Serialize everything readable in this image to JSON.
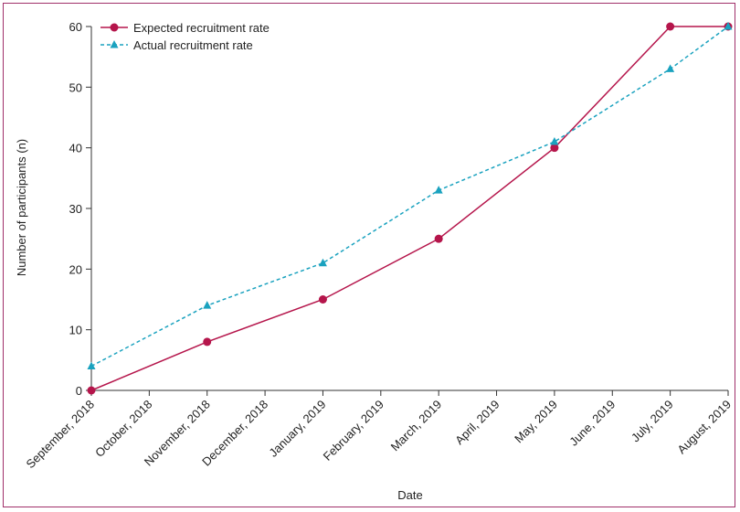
{
  "chart_data": {
    "type": "line",
    "title": "",
    "xlabel": "Date",
    "ylabel": "Number of participants (n)",
    "categories": [
      "September, 2018",
      "October, 2018",
      "November, 2018",
      "December, 2018",
      "January, 2019",
      "February, 2019",
      "March, 2019",
      "April, 2019",
      "May, 2019",
      "June, 2019",
      "July, 2019",
      "August, 2019"
    ],
    "ylim": [
      0,
      60
    ],
    "yticks": [
      0,
      10,
      20,
      30,
      40,
      50,
      60
    ],
    "grid": false,
    "legend_position": "top-left",
    "series": [
      {
        "name": "Expected recruitment rate",
        "color": "#b5154b",
        "marker": "circle",
        "line_style": "solid",
        "points": [
          {
            "x": "September, 2018",
            "y": 0
          },
          {
            "x": "November, 2018",
            "y": 8
          },
          {
            "x": "January, 2019",
            "y": 15
          },
          {
            "x": "March, 2019",
            "y": 25
          },
          {
            "x": "May, 2019",
            "y": 40
          },
          {
            "x": "July, 2019",
            "y": 60
          },
          {
            "x": "August, 2019",
            "y": 60
          }
        ]
      },
      {
        "name": "Actual recruitment rate",
        "color": "#1aa2bf",
        "marker": "triangle",
        "line_style": "dashed",
        "points": [
          {
            "x": "September, 2018",
            "y": 4
          },
          {
            "x": "November, 2018",
            "y": 14
          },
          {
            "x": "January, 2019",
            "y": 21
          },
          {
            "x": "March, 2019",
            "y": 33
          },
          {
            "x": "May, 2019",
            "y": 41
          },
          {
            "x": "July, 2019",
            "y": 53
          },
          {
            "x": "August, 2019",
            "y": 60
          }
        ]
      }
    ]
  }
}
